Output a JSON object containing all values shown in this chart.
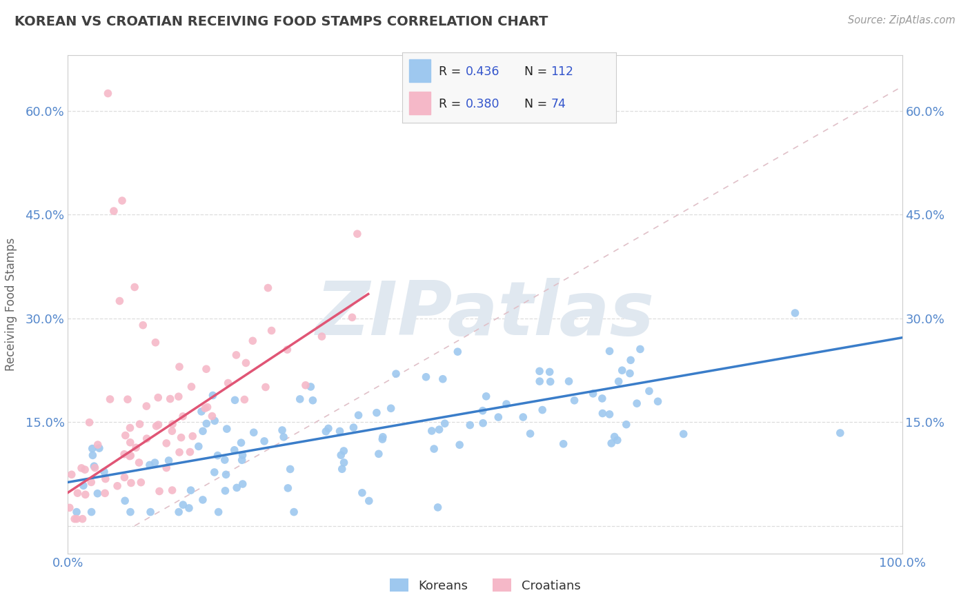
{
  "title": "KOREAN VS CROATIAN RECEIVING FOOD STAMPS CORRELATION CHART",
  "source": "Source: ZipAtlas.com",
  "ylabel": "Receiving Food Stamps",
  "xlim": [
    0.0,
    1.0
  ],
  "ylim": [
    -0.04,
    0.68
  ],
  "xticks": [
    0.0,
    0.1,
    0.2,
    0.3,
    0.4,
    0.5,
    0.6,
    0.7,
    0.8,
    0.9,
    1.0
  ],
  "yticks": [
    0.0,
    0.15,
    0.3,
    0.45,
    0.6
  ],
  "ytick_labels": [
    "",
    "15.0%",
    "30.0%",
    "45.0%",
    "60.0%"
  ],
  "xtick_labels": [
    "0.0%",
    "",
    "",
    "",
    "",
    "",
    "",
    "",
    "",
    "",
    "100.0%"
  ],
  "korean_color": "#9ec8ef",
  "croatian_color": "#f5b8c8",
  "korean_line_color": "#3a7dc9",
  "croatian_line_color": "#e05575",
  "ref_line_color": "#e0c0c8",
  "korean_R": 0.436,
  "korean_N": 112,
  "croatian_R": 0.38,
  "croatian_N": 74,
  "background_color": "#ffffff",
  "grid_color": "#dddddd",
  "title_color": "#404040",
  "tick_color": "#5588cc",
  "legend_R_color": "#3355cc",
  "watermark": "ZIPatlas",
  "watermark_color": "#e0e8f0",
  "korean_line_x0": 0.0,
  "korean_line_x1": 1.0,
  "korean_line_y0": 0.063,
  "korean_line_y1": 0.272,
  "croatian_line_x0": 0.0,
  "croatian_line_x1": 0.36,
  "croatian_line_y0": 0.048,
  "croatian_line_y1": 0.335,
  "ref_line_x0": 0.08,
  "ref_line_x1": 1.0,
  "ref_line_y0": 0.0,
  "ref_line_y1": 0.635
}
